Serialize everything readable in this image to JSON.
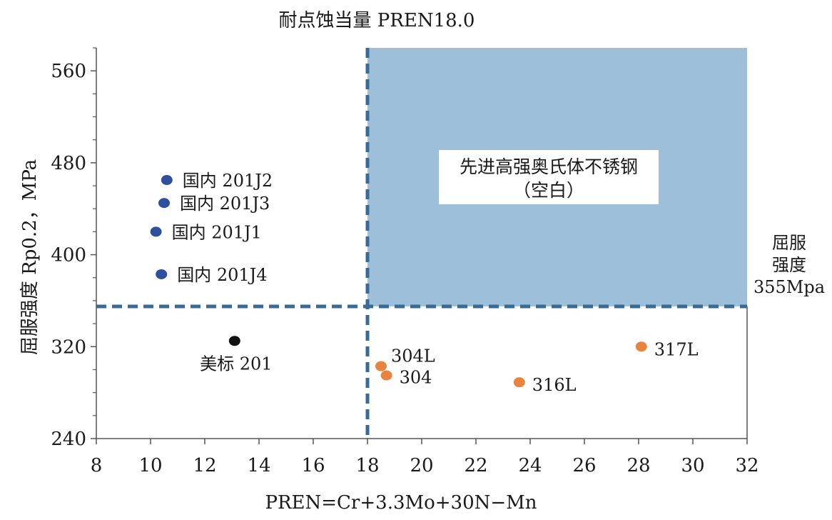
{
  "chart_data": {
    "type": "scatter",
    "title": "耐点蚀当量 PREN18.0",
    "xlabel": "PREN=Cr+3.3Mo+30N−Mn",
    "ylabel": "屈服强度 Rp0.2，MPa",
    "xlim": [
      8,
      32
    ],
    "ylim": [
      240,
      580
    ],
    "x_ticks": [
      "8",
      "10",
      "12",
      "14",
      "16",
      "18",
      "20",
      "22",
      "24",
      "26",
      "28",
      "30",
      "32"
    ],
    "y_ticks": [
      "240",
      "320",
      "400",
      "480",
      "560"
    ],
    "x_tick_values": [
      8,
      10,
      12,
      14,
      16,
      18,
      20,
      22,
      24,
      26,
      28,
      30,
      32
    ],
    "y_tick_values": [
      240,
      320,
      400,
      480,
      560
    ],
    "thresholds": {
      "pren": 18.0,
      "yield_strength": 355,
      "yield_label_lines": [
        "屈服",
        "强度",
        "355Mpa"
      ]
    },
    "region": {
      "label_lines": [
        "先进高强奥氏体不锈钢",
        "（空白）"
      ],
      "color": "#9dbfd9"
    },
    "colors": {
      "domestic": "#2e4f9c",
      "us": "#111111",
      "austenitic": "#e8843e",
      "dash": "#3a6b94",
      "axis": "#555555"
    },
    "series": [
      {
        "group": "domestic",
        "points": [
          {
            "label": "国内 201J2",
            "x": 10.6,
            "y": 465
          },
          {
            "label": "国内 201J3",
            "x": 10.5,
            "y": 445
          },
          {
            "label": "国内 201J1",
            "x": 10.2,
            "y": 420
          },
          {
            "label": "国内 201J4",
            "x": 10.4,
            "y": 383
          }
        ]
      },
      {
        "group": "us",
        "points": [
          {
            "label": "美标 201",
            "x": 13.1,
            "y": 325
          }
        ]
      },
      {
        "group": "austenitic",
        "points": [
          {
            "label": "304L",
            "x": 18.5,
            "y": 303
          },
          {
            "label": "304",
            "x": 18.7,
            "y": 295
          },
          {
            "label": "316L",
            "x": 23.6,
            "y": 289
          },
          {
            "label": "317L",
            "x": 28.1,
            "y": 320
          }
        ]
      }
    ]
  }
}
